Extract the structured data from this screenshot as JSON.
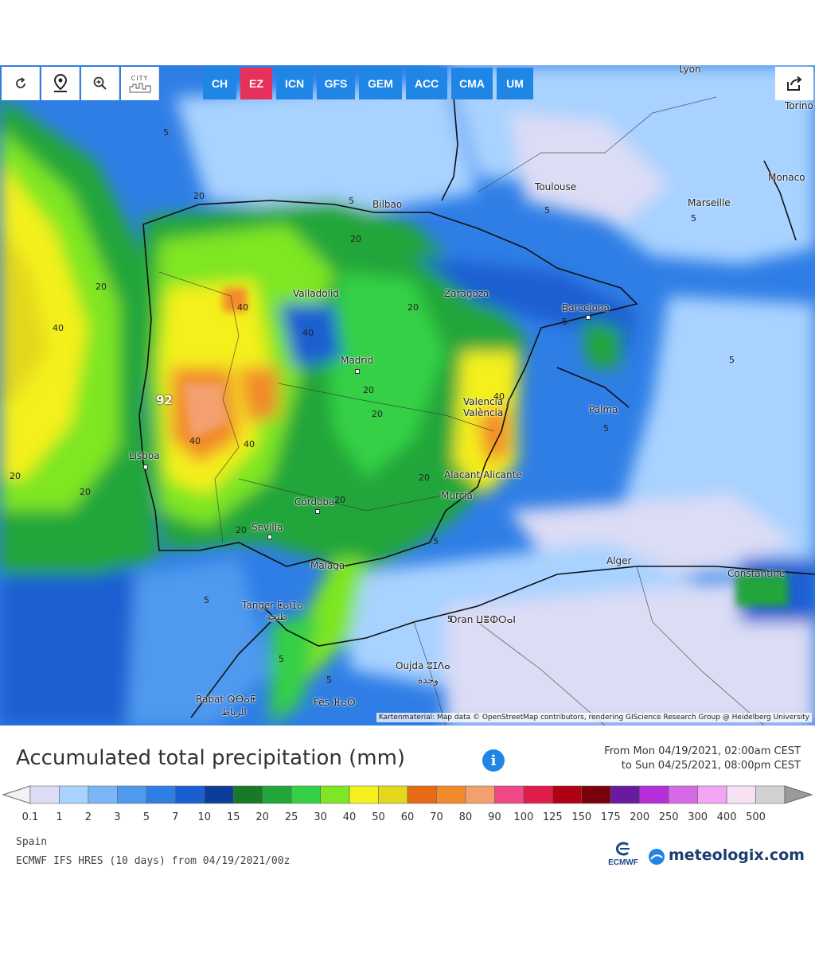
{
  "toolbar": {
    "tools": [
      {
        "name": "refresh-icon"
      },
      {
        "name": "location-pin-icon"
      },
      {
        "name": "zoom-icon"
      },
      {
        "name": "city-icon",
        "label": "CITY"
      }
    ],
    "models": [
      {
        "label": "CH",
        "active": false
      },
      {
        "label": "EZ",
        "active": true
      },
      {
        "label": "ICN",
        "active": false
      },
      {
        "label": "GFS",
        "active": false
      },
      {
        "label": "GEM",
        "active": false
      },
      {
        "label": "ACC",
        "active": false
      },
      {
        "label": "CMA",
        "active": false
      },
      {
        "label": "UM",
        "active": false
      }
    ],
    "share_icon": "share-icon"
  },
  "map": {
    "cities": [
      {
        "name": "Lyon"
      },
      {
        "name": "Torino"
      },
      {
        "name": "Monaco"
      },
      {
        "name": "Toulouse"
      },
      {
        "name": "Marseille"
      },
      {
        "name": "Bilbao"
      },
      {
        "name": "Valladolid"
      },
      {
        "name": "Zaragoza"
      },
      {
        "name": "Barcelona"
      },
      {
        "name": "Madrid"
      },
      {
        "name": "Valencia / València"
      },
      {
        "name": "Palma"
      },
      {
        "name": "Lisboa"
      },
      {
        "name": "Alacant/Alicante"
      },
      {
        "name": "Murcia"
      },
      {
        "name": "Córdoba"
      },
      {
        "name": "Sevilla"
      },
      {
        "name": "Málaga"
      },
      {
        "name": "Alger"
      },
      {
        "name": "Constantine"
      },
      {
        "name": "Tanger ⵟⴰⵏⵊⴰ"
      },
      {
        "name": "طنجة"
      },
      {
        "name": "Oran ⵡⴻⵀⵔⴰⵏ"
      },
      {
        "name": "Oujda ⵓⵊⴷⴰ"
      },
      {
        "name": "وجدة"
      },
      {
        "name": "Rabat ⵕⴱⴰⵟ"
      },
      {
        "name": "الرباط"
      },
      {
        "name": "Fès ⴼⴰⵙ"
      }
    ],
    "contour_labels": [
      "5",
      "5",
      "5",
      "5",
      "5",
      "5",
      "5",
      "5",
      "5",
      "5",
      "5",
      "5",
      "20",
      "20",
      "20",
      "20",
      "20",
      "20",
      "20",
      "20",
      "20",
      "20",
      "20",
      "40",
      "40",
      "40",
      "40",
      "40",
      "40"
    ],
    "max_label": "92",
    "attribution": "Kartenmaterial: Map data © OpenStreetMap contributors, rendering GIScience Research Group @ Heidelberg University"
  },
  "title": "Accumulated total precipitation (mm)",
  "period": {
    "from": "From Mon 04/19/2021, 02:00am CEST",
    "to": "to Sun 04/25/2021, 08:00pm CEST"
  },
  "legend": {
    "ticks": [
      "0.1",
      "1",
      "2",
      "3",
      "5",
      "7",
      "10",
      "15",
      "20",
      "25",
      "30",
      "40",
      "50",
      "60",
      "70",
      "80",
      "90",
      "100",
      "125",
      "150",
      "175",
      "200",
      "250",
      "300",
      "400",
      "500"
    ],
    "colors": [
      "#dcdcf5",
      "#a8d2ff",
      "#7ab6f5",
      "#4f9aef",
      "#2f7ee6",
      "#1a5fd1",
      "#0c3d9a",
      "#167a28",
      "#21a63a",
      "#35d045",
      "#7ee624",
      "#f4f01e",
      "#e4d81a",
      "#e86a14",
      "#f28a2c",
      "#f4a06e",
      "#ef4a86",
      "#e01c4a",
      "#b00014",
      "#7a000c",
      "#6a1a9e",
      "#b62ed8",
      "#d66ae6",
      "#f0a6f2",
      "#f6e0f4",
      "#d2d2d2"
    ]
  },
  "footer": {
    "region": "Spain",
    "model": "ECMWF IFS HRES (10 days) from 04/19/2021/00z",
    "ecmwf_logo": "ECMWF",
    "brand": "meteologix.com"
  }
}
